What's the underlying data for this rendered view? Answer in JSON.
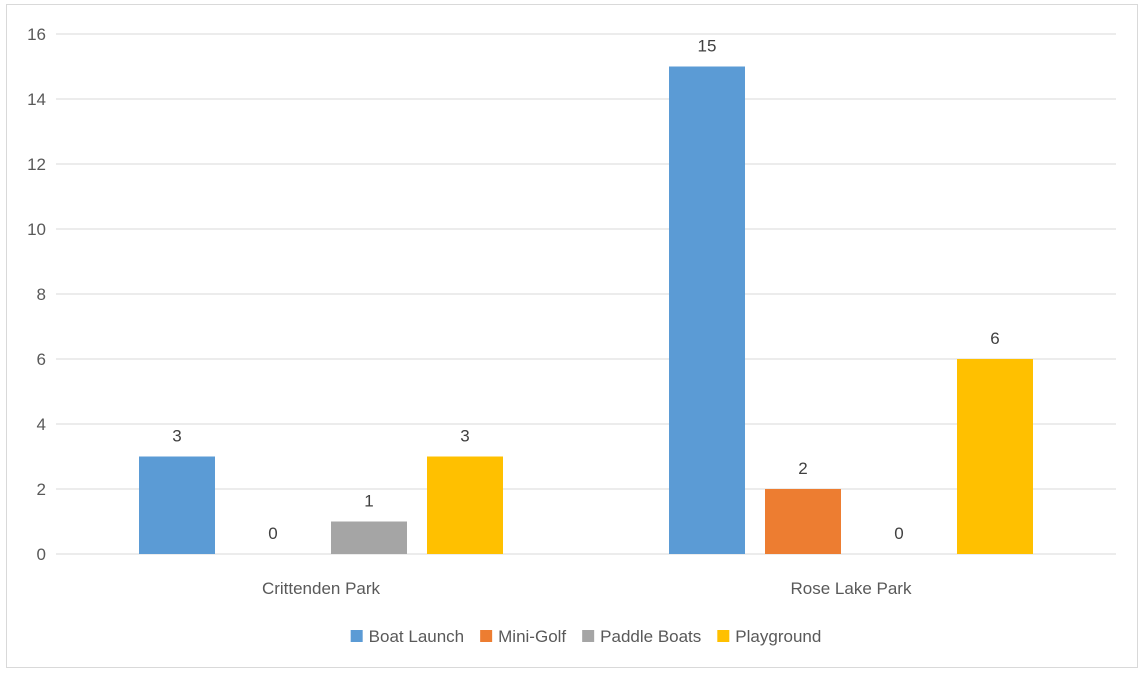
{
  "chart_data": {
    "type": "bar",
    "title": "",
    "xlabel": "",
    "ylabel": "",
    "categories": [
      "Crittenden Park",
      "Rose Lake Park"
    ],
    "series": [
      {
        "name": "Boat Launch",
        "color": "#5B9BD5",
        "values": [
          3,
          15
        ]
      },
      {
        "name": "Mini-Golf",
        "color": "#ED7D31",
        "values": [
          0,
          2
        ]
      },
      {
        "name": "Paddle Boats",
        "color": "#A5A5A5",
        "values": [
          1,
          0
        ]
      },
      {
        "name": "Playground",
        "color": "#FFC000",
        "values": [
          3,
          6
        ]
      }
    ],
    "ylim": [
      0,
      16
    ],
    "yticks": [
      0,
      2,
      4,
      6,
      8,
      10,
      12,
      14,
      16
    ],
    "grid": true,
    "legend": "bottom",
    "data_labels": true
  }
}
